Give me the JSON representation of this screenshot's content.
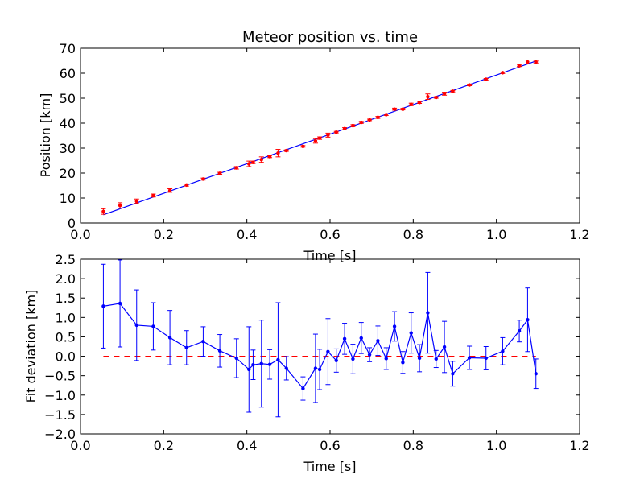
{
  "chart_data": [
    {
      "type": "scatter",
      "title": "Meteor position vs. time",
      "xlabel": "Time [s]",
      "ylabel": "Position [km]",
      "xlim": [
        0.0,
        1.2
      ],
      "ylim": [
        0,
        70
      ],
      "xticks": [
        "0.0",
        "0.2",
        "0.4",
        "0.6",
        "0.8",
        "1.0",
        "1.2"
      ],
      "yticks": [
        "0",
        "10",
        "20",
        "30",
        "40",
        "50",
        "60",
        "70"
      ],
      "grid": false,
      "colors": {
        "points": "#ff0000",
        "fit": "#0000ff"
      },
      "series": [
        {
          "kind": "points_with_errorbars",
          "x": [
            0.055,
            0.095,
            0.135,
            0.175,
            0.215,
            0.255,
            0.295,
            0.335,
            0.375,
            0.405,
            0.415,
            0.435,
            0.455,
            0.475,
            0.495,
            0.535,
            0.565,
            0.575,
            0.595,
            0.615,
            0.635,
            0.655,
            0.675,
            0.695,
            0.715,
            0.735,
            0.755,
            0.775,
            0.795,
            0.815,
            0.835,
            0.855,
            0.875,
            0.895,
            0.935,
            0.975,
            1.015,
            1.055,
            1.075,
            1.095
          ],
          "y": [
            4.6,
            7.0,
            8.7,
            11.0,
            13.0,
            15.2,
            17.6,
            19.9,
            22.1,
            23.7,
            24.3,
            25.4,
            26.6,
            28.0,
            29.0,
            30.7,
            32.9,
            34.0,
            35.2,
            36.4,
            37.8,
            39.0,
            40.3,
            41.3,
            42.3,
            43.4,
            45.6,
            45.6,
            47.5,
            48.3,
            50.6,
            50.3,
            51.8,
            52.8,
            55.3,
            57.6,
            60.2,
            63.0,
            64.5,
            64.5
          ],
          "yerr": [
            1.1,
            1.1,
            0.9,
            0.6,
            0.7,
            0.4,
            0.4,
            0.4,
            0.5,
            1.1,
            0.5,
            1.1,
            0.4,
            1.5,
            0.3,
            0.3,
            0.9,
            0.5,
            0.8,
            0.3,
            0.4,
            0.4,
            0.4,
            0.3,
            0.4,
            0.3,
            0.4,
            0.3,
            0.5,
            0.4,
            1.1,
            0.3,
            0.6,
            0.3,
            0.3,
            0.3,
            0.3,
            0.3,
            0.8,
            0.4
          ]
        },
        {
          "kind": "fit_line",
          "x": [
            0.055,
            1.095
          ],
          "y": [
            3.3,
            64.9
          ]
        }
      ]
    },
    {
      "type": "line",
      "title": "",
      "xlabel": "Time [s]",
      "ylabel": "Fit deviation [km]",
      "xlim": [
        0.0,
        1.2
      ],
      "ylim": [
        -2.0,
        2.5
      ],
      "xticks": [
        "0.0",
        "0.2",
        "0.4",
        "0.6",
        "0.8",
        "1.0",
        "1.2"
      ],
      "yticks": [
        "−2.0",
        "−1.5",
        "−1.0",
        "−0.5",
        "0.0",
        "0.5",
        "1.0",
        "1.5",
        "2.0",
        "2.5"
      ],
      "grid": false,
      "colors": {
        "series": "#0000ff",
        "zero_line": "#ff0000"
      },
      "zero_line": {
        "style": "dashed",
        "y": 0.0
      },
      "series": [
        {
          "kind": "line_with_errorbars",
          "x": [
            0.055,
            0.095,
            0.135,
            0.175,
            0.215,
            0.255,
            0.295,
            0.335,
            0.375,
            0.405,
            0.415,
            0.435,
            0.455,
            0.475,
            0.495,
            0.535,
            0.565,
            0.575,
            0.595,
            0.615,
            0.635,
            0.655,
            0.675,
            0.695,
            0.715,
            0.735,
            0.755,
            0.775,
            0.795,
            0.815,
            0.835,
            0.855,
            0.875,
            0.895,
            0.935,
            0.975,
            1.015,
            1.055,
            1.075,
            1.095
          ],
          "y": [
            1.29,
            1.36,
            0.8,
            0.77,
            0.48,
            0.22,
            0.38,
            0.14,
            -0.05,
            -0.34,
            -0.22,
            -0.19,
            -0.21,
            -0.09,
            -0.31,
            -0.83,
            -0.31,
            -0.34,
            0.12,
            -0.11,
            0.45,
            -0.07,
            0.47,
            0.04,
            0.4,
            -0.06,
            0.77,
            -0.16,
            0.6,
            -0.05,
            1.12,
            -0.07,
            0.24,
            -0.45,
            -0.04,
            -0.05,
            0.13,
            0.65,
            0.94,
            -0.45
          ],
          "yerr": [
            1.08,
            1.12,
            0.91,
            0.61,
            0.7,
            0.44,
            0.38,
            0.42,
            0.5,
            1.1,
            0.38,
            1.12,
            0.38,
            1.47,
            0.3,
            0.3,
            0.88,
            0.52,
            0.85,
            0.3,
            0.4,
            0.38,
            0.4,
            0.18,
            0.38,
            0.28,
            0.38,
            0.28,
            0.52,
            0.35,
            1.04,
            0.22,
            0.66,
            0.32,
            0.3,
            0.3,
            0.35,
            0.28,
            0.82,
            0.38
          ]
        }
      ]
    }
  ]
}
